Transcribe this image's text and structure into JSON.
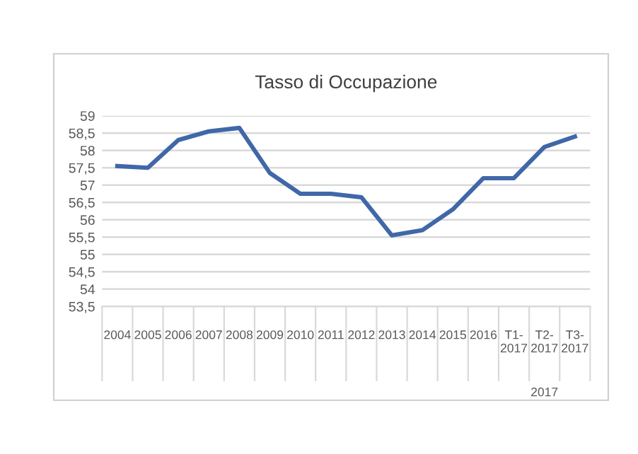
{
  "chart_data": {
    "type": "line",
    "title": "Tasso di Occupazione",
    "categories": [
      "2004",
      "2005",
      "2006",
      "2007",
      "2008",
      "2009",
      "2010",
      "2011",
      "2012",
      "2013",
      "2014",
      "2015",
      "2016",
      "T1- 2017",
      "T2- 2017",
      "T3- 2017"
    ],
    "series": [
      {
        "color": "#4068a8",
        "values": [
          57.55,
          57.5,
          58.3,
          58.55,
          58.65,
          57.35,
          56.75,
          56.75,
          56.65,
          55.55,
          55.7,
          56.3,
          57.2,
          57.2,
          58.1,
          58.4
        ]
      }
    ],
    "ylim": [
      53.5,
      59
    ],
    "yticks": [
      {
        "value": 53.5,
        "label": "53,5"
      },
      {
        "value": 54,
        "label": "54"
      },
      {
        "value": 54.5,
        "label": "54,5"
      },
      {
        "value": 55,
        "label": "55"
      },
      {
        "value": 55.5,
        "label": "55,5"
      },
      {
        "value": 56,
        "label": "56"
      },
      {
        "value": 56.5,
        "label": "56,5"
      },
      {
        "value": 57,
        "label": "57"
      },
      {
        "value": 57.5,
        "label": "57,5"
      },
      {
        "value": 58,
        "label": "58"
      },
      {
        "value": 58.5,
        "label": "58,5"
      },
      {
        "value": 59,
        "label": "59"
      }
    ],
    "grid": "y",
    "marker": "none",
    "line_style": "solid",
    "annotations": [
      "2017"
    ]
  }
}
